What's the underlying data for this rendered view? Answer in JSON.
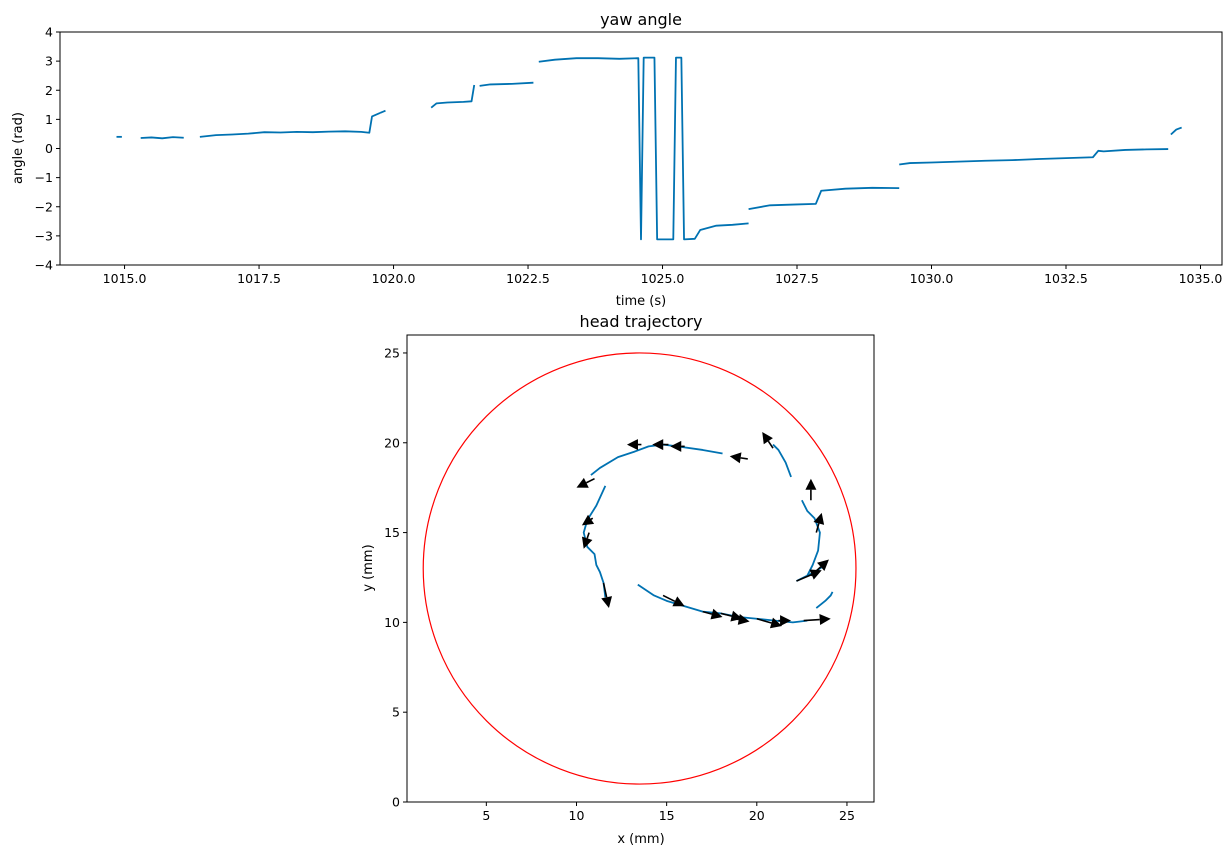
{
  "chart_data": [
    {
      "type": "line",
      "title": "yaw angle",
      "xlabel": "time (s)",
      "ylabel": "angle (rad)",
      "xlim": [
        1013.8,
        1035.4
      ],
      "ylim": [
        -4,
        4
      ],
      "x_ticks": [
        "1015.0",
        "1017.5",
        "1020.0",
        "1022.5",
        "1025.0",
        "1027.5",
        "1030.0",
        "1032.5",
        "1035.0"
      ],
      "y_ticks": [
        "−4",
        "−3",
        "−2",
        "−1",
        "0",
        "1",
        "2",
        "3",
        "4"
      ],
      "grid": false,
      "color": "#0072b2",
      "segments": [
        {
          "x": [
            1014.85,
            1014.95
          ],
          "y": [
            0.4,
            0.4
          ]
        },
        {
          "x": [
            1015.3,
            1015.5,
            1015.7,
            1015.9,
            1016.1
          ],
          "y": [
            0.36,
            0.38,
            0.35,
            0.39,
            0.37
          ]
        },
        {
          "x": [
            1016.4,
            1016.7,
            1017.0,
            1017.3,
            1017.6,
            1017.9,
            1018.2,
            1018.5,
            1018.8,
            1019.1,
            1019.4,
            1019.55,
            1019.6,
            1019.75
          ],
          "y": [
            0.4,
            0.46,
            0.48,
            0.51,
            0.56,
            0.55,
            0.57,
            0.56,
            0.58,
            0.59,
            0.57,
            0.54,
            1.1,
            1.22
          ]
        },
        {
          "x": [
            1019.75,
            1019.85
          ],
          "y": [
            1.22,
            1.3
          ]
        },
        {
          "x": [
            1020.7,
            1020.8,
            1021.0,
            1021.3,
            1021.45,
            1021.5
          ],
          "y": [
            1.4,
            1.55,
            1.58,
            1.6,
            1.62,
            2.18
          ]
        },
        {
          "x": [
            1021.6,
            1021.8,
            1022.2,
            1022.6
          ],
          "y": [
            2.15,
            2.2,
            2.22,
            2.26
          ]
        },
        {
          "x": [
            1022.7,
            1023.0,
            1023.4,
            1023.8,
            1024.2,
            1024.55,
            1024.6,
            1024.65,
            1024.7,
            1024.85,
            1024.9,
            1025.0,
            1025.2,
            1025.25,
            1025.35,
            1025.4,
            1025.6,
            1025.7,
            1026.0,
            1026.3,
            1026.6
          ],
          "y": [
            2.98,
            3.05,
            3.1,
            3.1,
            3.08,
            3.1,
            -3.12,
            3.12,
            3.12,
            3.12,
            -3.12,
            -3.12,
            -3.12,
            3.12,
            3.12,
            -3.12,
            -3.1,
            -2.8,
            -2.65,
            -2.62,
            -2.57
          ]
        },
        {
          "x": [
            1026.6,
            1027.0,
            1027.5,
            1027.85,
            1027.95,
            1028.4,
            1028.9,
            1029.4
          ],
          "y": [
            -2.08,
            -1.95,
            -1.92,
            -1.9,
            -1.45,
            -1.38,
            -1.35,
            -1.36
          ]
        },
        {
          "x": [
            1029.4,
            1029.6,
            1030.0,
            1030.5,
            1031.0,
            1031.5,
            1032.0,
            1032.5,
            1033.0,
            1033.1,
            1033.2,
            1033.6,
            1034.0,
            1034.4
          ],
          "y": [
            -0.55,
            -0.5,
            -0.48,
            -0.45,
            -0.42,
            -0.4,
            -0.36,
            -0.33,
            -0.3,
            -0.08,
            -0.1,
            -0.05,
            -0.03,
            -0.02
          ]
        },
        {
          "x": [
            1034.45,
            1034.55,
            1034.65
          ],
          "y": [
            0.48,
            0.65,
            0.72
          ]
        }
      ]
    },
    {
      "type": "line",
      "title": "head trajectory",
      "xlabel": "x (mm)",
      "ylabel": "y (mm)",
      "xlim": [
        0.6,
        26.5
      ],
      "ylim": [
        0,
        26
      ],
      "x_ticks": [
        "5",
        "10",
        "15",
        "20",
        "25"
      ],
      "y_ticks": [
        "0",
        "5",
        "10",
        "15",
        "20",
        "25"
      ],
      "grid": false,
      "arena_circle": {
        "cx": 13.5,
        "cy": 13,
        "r": 12,
        "color": "#ff0000"
      },
      "color": "#0072b2",
      "arrow_color": "#000000",
      "segments": [
        {
          "x": [
            18.1,
            17.0,
            15.6,
            14.8,
            14.0,
            13.2,
            12.3,
            11.3,
            10.8
          ],
          "y": [
            19.4,
            19.6,
            19.8,
            19.9,
            19.8,
            19.5,
            19.2,
            18.6,
            18.2
          ]
        },
        {
          "x": [
            21.9,
            21.6,
            21.2,
            20.9
          ],
          "y": [
            18.1,
            18.9,
            19.6,
            19.9
          ]
        },
        {
          "x": [
            22.5,
            22.8,
            23.2,
            23.5,
            23.4,
            23.1,
            22.8
          ],
          "y": [
            16.8,
            16.2,
            15.8,
            15.0,
            14.0,
            13.2,
            12.6
          ]
        },
        {
          "x": [
            11.6,
            11.1,
            10.6,
            10.4,
            10.6,
            11.0,
            11.1,
            11.3,
            11.5,
            11.6
          ],
          "y": [
            17.6,
            16.5,
            15.7,
            15.0,
            14.2,
            13.8,
            13.2,
            12.8,
            12.2,
            11.4
          ]
        },
        {
          "x": [
            22.2,
            22.6,
            23.2,
            23.8
          ],
          "y": [
            12.3,
            12.5,
            12.8,
            13.2
          ]
        },
        {
          "x": [
            13.4,
            14.3,
            15.0,
            16.0,
            17.0,
            18.0,
            19.0,
            20.0,
            21.0,
            22.0,
            22.8
          ],
          "y": [
            12.1,
            11.5,
            11.2,
            10.9,
            10.6,
            10.5,
            10.3,
            10.2,
            10.1,
            10.0,
            10.1
          ]
        },
        {
          "x": [
            23.3,
            23.8,
            24.1,
            24.2
          ],
          "y": [
            10.8,
            11.2,
            11.5,
            11.7
          ]
        }
      ],
      "arrows": [
        {
          "x": 13.6,
          "y": 19.9,
          "dx": -0.8,
          "dy": 0.0
        },
        {
          "x": 15.1,
          "y": 19.9,
          "dx": -0.9,
          "dy": 0.0
        },
        {
          "x": 16.0,
          "y": 19.8,
          "dx": -0.8,
          "dy": 0.0
        },
        {
          "x": 11.0,
          "y": 18.0,
          "dx": -1.0,
          "dy": -0.5
        },
        {
          "x": 19.5,
          "y": 19.1,
          "dx": -1.0,
          "dy": 0.15
        },
        {
          "x": 20.9,
          "y": 19.7,
          "dx": -0.6,
          "dy": 0.9
        },
        {
          "x": 23.0,
          "y": 16.8,
          "dx": 0.0,
          "dy": 1.2
        },
        {
          "x": 23.3,
          "y": 15.0,
          "dx": 0.3,
          "dy": 1.1
        },
        {
          "x": 10.9,
          "y": 15.8,
          "dx": -0.6,
          "dy": -0.4
        },
        {
          "x": 10.7,
          "y": 15.0,
          "dx": -0.3,
          "dy": -0.9
        },
        {
          "x": 22.2,
          "y": 12.3,
          "dx": 1.4,
          "dy": 0.6
        },
        {
          "x": 23.0,
          "y": 12.6,
          "dx": 1.0,
          "dy": 0.9
        },
        {
          "x": 11.5,
          "y": 12.2,
          "dx": 0.3,
          "dy": -1.4
        },
        {
          "x": 14.8,
          "y": 11.5,
          "dx": 1.2,
          "dy": -0.6
        },
        {
          "x": 17.0,
          "y": 10.6,
          "dx": 1.1,
          "dy": -0.3
        },
        {
          "x": 18.0,
          "y": 10.5,
          "dx": 1.2,
          "dy": -0.3
        },
        {
          "x": 18.8,
          "y": 10.2,
          "dx": 0.8,
          "dy": -0.15
        },
        {
          "x": 20.0,
          "y": 10.2,
          "dx": 1.4,
          "dy": -0.4
        },
        {
          "x": 21.2,
          "y": 10.1,
          "dx": 0.7,
          "dy": 0.0
        },
        {
          "x": 22.6,
          "y": 10.1,
          "dx": 1.5,
          "dy": 0.1
        }
      ]
    }
  ]
}
